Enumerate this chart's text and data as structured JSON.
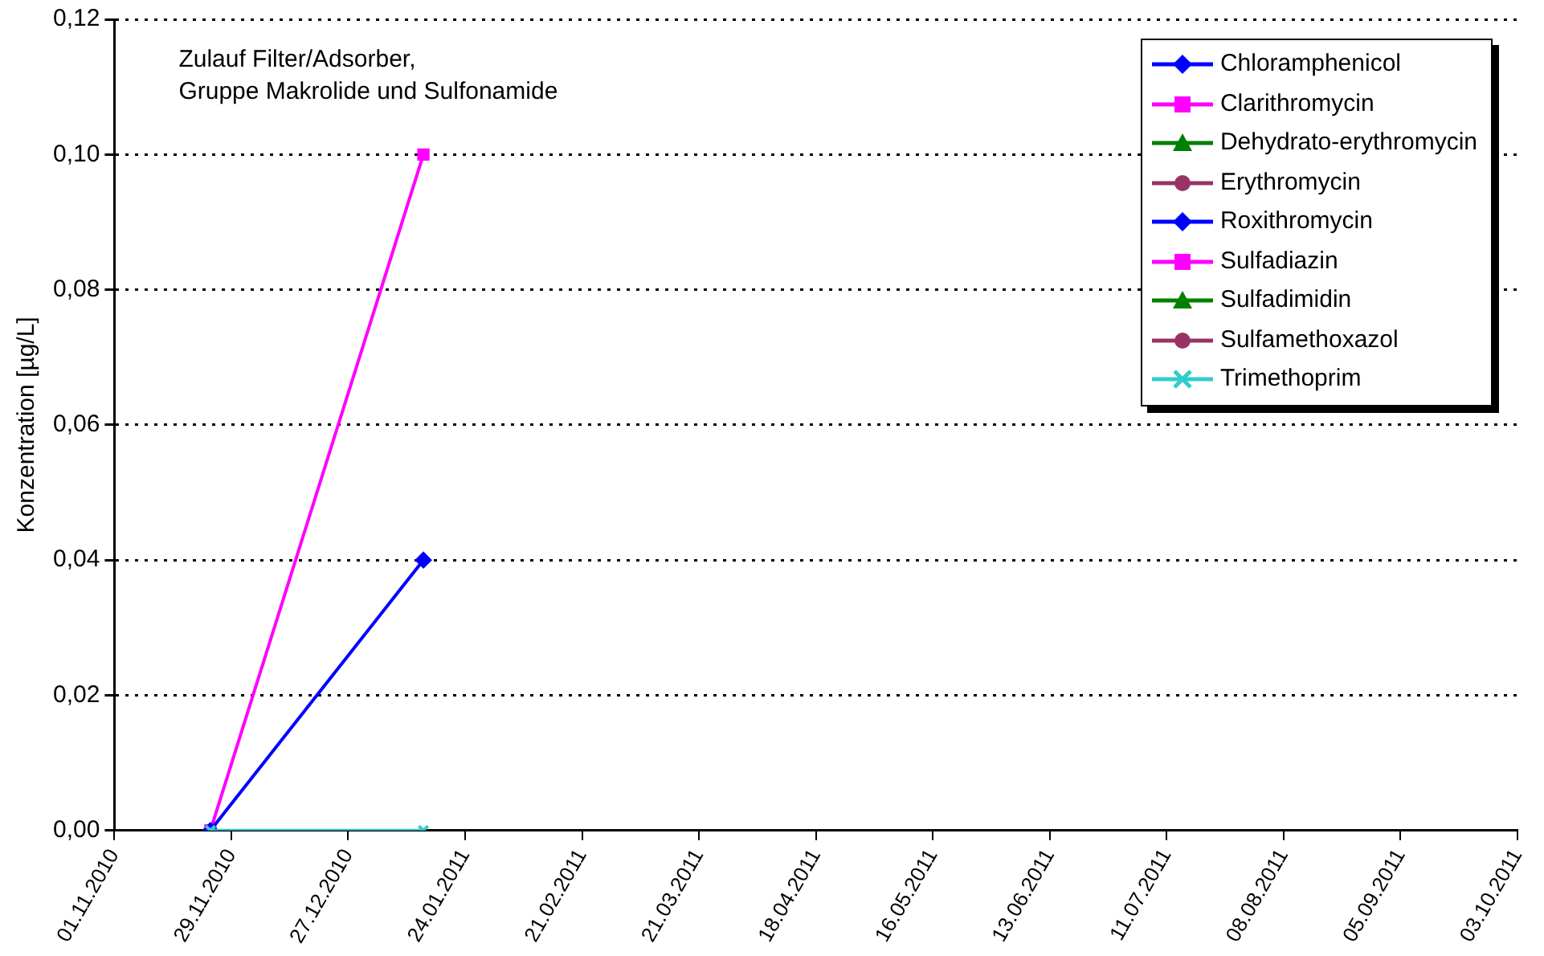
{
  "chart_data": {
    "type": "line",
    "ylabel": "Konzentration [µg/L]",
    "annotations": [
      "Zulauf Filter/Adsorber,\nGruppe Makrolide und Sulfonamide"
    ],
    "x": [
      "2010-11-24",
      "2011-01-14"
    ],
    "series": [
      {
        "name": "Chloramphenicol",
        "color": "#0000ff",
        "values": [
          null,
          null
        ],
        "marker": "diamond"
      },
      {
        "name": "Clarithromycin",
        "color": "#ff00ff",
        "values": [
          0,
          0.1
        ],
        "marker": "square"
      },
      {
        "name": "Dehydrato-erythromycin",
        "color": "#008000",
        "values": [
          null,
          null
        ],
        "marker": "triangle"
      },
      {
        "name": "Erythromycin",
        "color": "#993366",
        "values": [
          null,
          null
        ],
        "marker": "circle"
      },
      {
        "name": "Roxithromycin",
        "color": "#0000ff",
        "values": [
          0,
          0.04
        ],
        "marker": "diamond"
      },
      {
        "name": "Sulfadiazin",
        "color": "#ff00ff",
        "values": [
          null,
          null
        ],
        "marker": "square"
      },
      {
        "name": "Sulfadimidin",
        "color": "#008000",
        "values": [
          null,
          null
        ],
        "marker": "triangle"
      },
      {
        "name": "Sulfamethoxazol",
        "color": "#993366",
        "values": [
          null,
          null
        ],
        "marker": "circle"
      },
      {
        "name": "Trimethoprim",
        "color": "#33cccc",
        "values": [
          0,
          0
        ],
        "marker": "cross"
      }
    ],
    "xlim": [
      "2010-11-01",
      "2011-10-03"
    ],
    "xticks": [
      {
        "value": "2010-11-01",
        "label": "01.11.2010"
      },
      {
        "value": "2010-11-29",
        "label": "29.11.2010"
      },
      {
        "value": "2010-12-27",
        "label": "27.12.2010"
      },
      {
        "value": "2011-01-24",
        "label": "24.01.2011"
      },
      {
        "value": "2011-02-21",
        "label": "21.02.2011"
      },
      {
        "value": "2011-03-21",
        "label": "21.03.2011"
      },
      {
        "value": "2011-04-18",
        "label": "18.04.2011"
      },
      {
        "value": "2011-05-16",
        "label": "16.05.2011"
      },
      {
        "value": "2011-06-13",
        "label": "13.06.2011"
      },
      {
        "value": "2011-07-11",
        "label": "11.07.2011"
      },
      {
        "value": "2011-08-08",
        "label": "08.08.2011"
      },
      {
        "value": "2011-09-05",
        "label": "05.09.2011"
      },
      {
        "value": "2011-10-03",
        "label": "03.10.2011"
      }
    ],
    "ylim": [
      0,
      0.12
    ],
    "yticks": [
      {
        "value": 0,
        "label": "0,00"
      },
      {
        "value": 0.02,
        "label": "0,02"
      },
      {
        "value": 0.04,
        "label": "0,04"
      },
      {
        "value": 0.06,
        "label": "0,06"
      },
      {
        "value": 0.08,
        "label": "0,08"
      },
      {
        "value": 0.1,
        "label": "0,10"
      },
      {
        "value": 0.12,
        "label": "0,12"
      }
    ],
    "grid": "y",
    "legend": "top right",
    "line_style": "solid"
  }
}
